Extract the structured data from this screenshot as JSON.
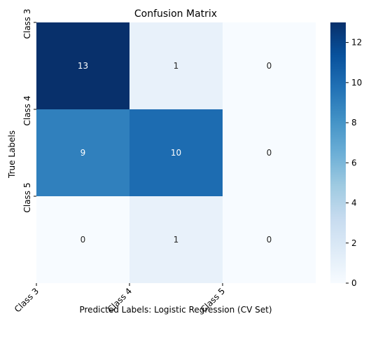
{
  "chart_data": {
    "type": "heatmap",
    "title": "Confusion Matrix",
    "xlabel": "Predicted Labels: Logistic Regression (CV Set)",
    "ylabel": "True Labels",
    "x_tick_labels": [
      "Class 3",
      "Class 4",
      "Class 5"
    ],
    "y_tick_labels": [
      "Class 3",
      "Class 4",
      "Class 5"
    ],
    "matrix": [
      [
        13,
        1,
        0
      ],
      [
        9,
        10,
        0
      ],
      [
        0,
        1,
        0
      ]
    ],
    "colormap": "Blues",
    "colorbar": {
      "min": 0,
      "max": 13,
      "ticks": [
        0,
        2,
        4,
        6,
        8,
        10,
        12
      ]
    }
  }
}
